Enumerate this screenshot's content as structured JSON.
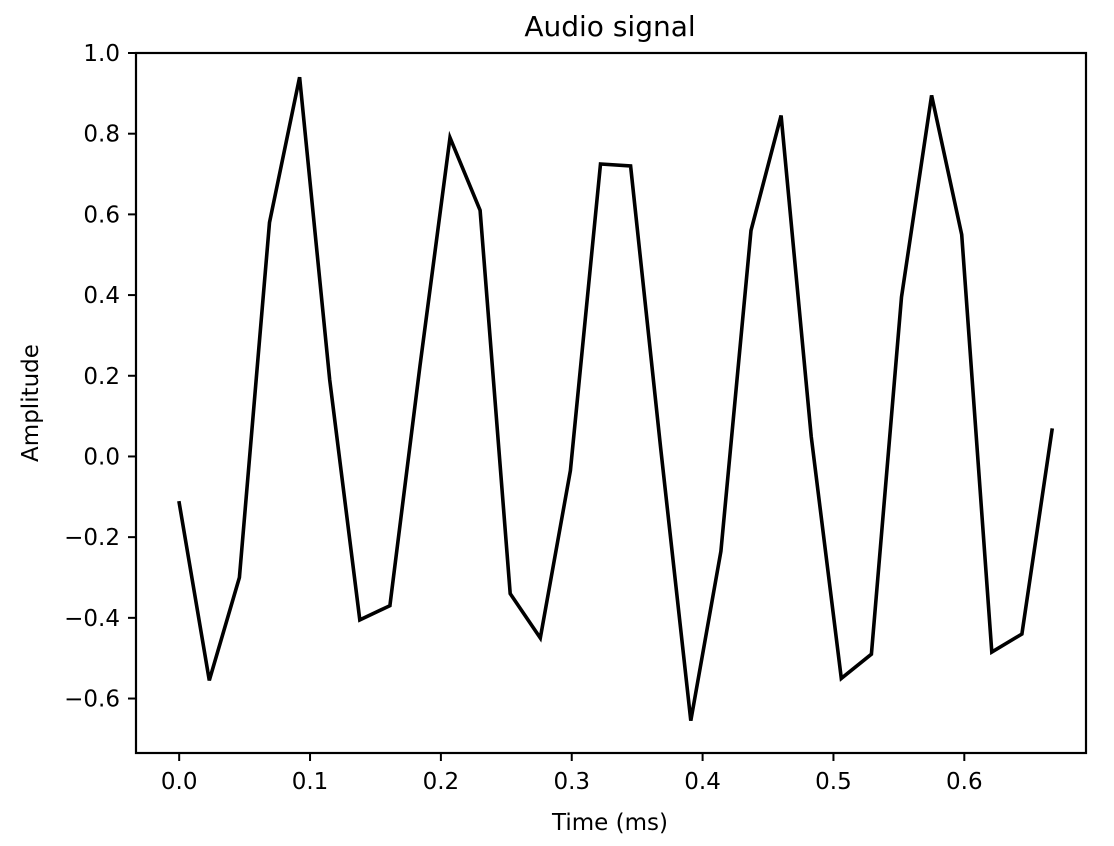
{
  "chart_data": {
    "type": "line",
    "title": "Audio signal",
    "xlabel": "Time (ms)",
    "ylabel": "Amplitude",
    "xlim": [
      -0.033,
      0.693
    ],
    "ylim": [
      -0.735,
      1.0
    ],
    "xticks": [
      0.0,
      0.1,
      0.2,
      0.3,
      0.4,
      0.5,
      0.6
    ],
    "xtick_labels": [
      "0.0",
      "0.1",
      "0.2",
      "0.3",
      "0.4",
      "0.5",
      "0.6"
    ],
    "yticks": [
      1.0,
      0.8,
      0.6,
      0.4,
      0.2,
      0.0,
      -0.2,
      -0.4,
      -0.6
    ],
    "ytick_labels": [
      "1.0",
      "0.8",
      "0.6",
      "0.4",
      "0.2",
      "0.0",
      "−0.2",
      "−0.4",
      "−0.6"
    ],
    "grid": false,
    "line_color": "#000000",
    "series": [
      {
        "x": [
          0.0,
          0.023,
          0.046,
          0.069,
          0.092,
          0.115,
          0.138,
          0.161,
          0.184,
          0.207,
          0.23,
          0.253,
          0.276,
          0.299,
          0.322,
          0.345,
          0.368,
          0.391,
          0.414,
          0.437,
          0.46,
          0.483,
          0.506,
          0.529,
          0.552,
          0.575,
          0.598,
          0.621,
          0.644,
          0.667
        ],
        "values": [
          -0.115,
          -0.555,
          -0.3,
          0.58,
          0.94,
          0.19,
          -0.405,
          -0.37,
          0.225,
          0.79,
          0.61,
          -0.34,
          -0.45,
          -0.035,
          0.725,
          0.72,
          0.02,
          -0.655,
          -0.235,
          0.56,
          0.845,
          0.05,
          -0.55,
          -0.49,
          0.395,
          0.895,
          0.55,
          -0.485,
          -0.44,
          0.065
        ]
      }
    ]
  }
}
